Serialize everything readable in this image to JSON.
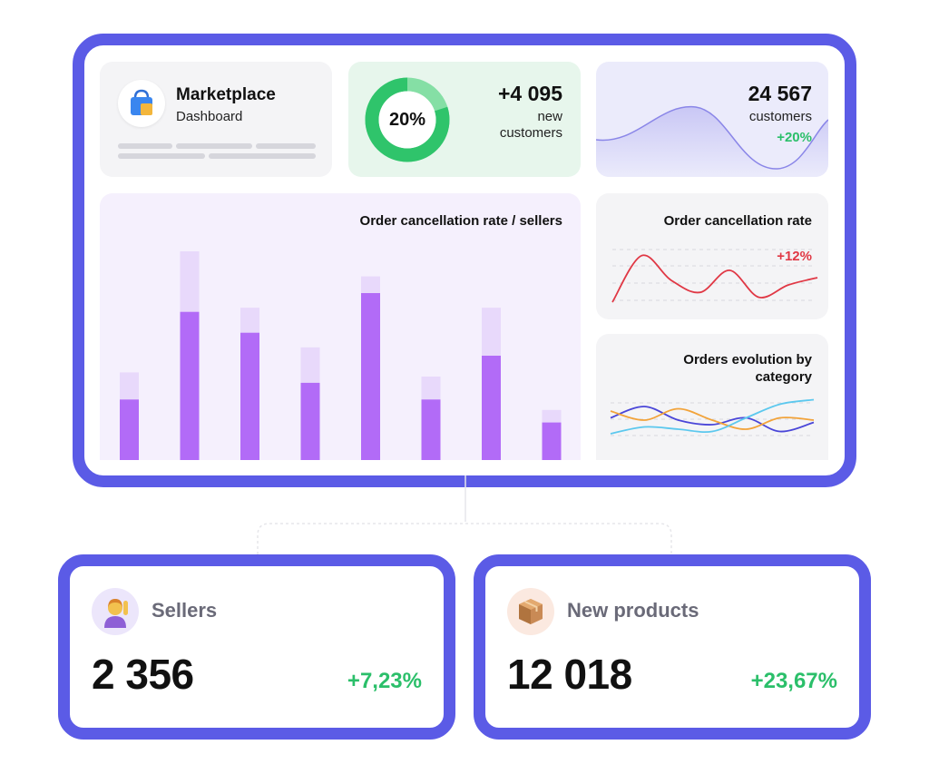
{
  "brand": {
    "title": "Marketplace",
    "subtitle": "Dashboard",
    "icon": "shopping-bag-icon"
  },
  "new_customers": {
    "percent_label": "20%",
    "percent_value": 0.2,
    "value": "+4 095",
    "label_line1": "new",
    "label_line2": "customers"
  },
  "customers": {
    "value": "24 567",
    "label": "customers",
    "delta": "+20%"
  },
  "cancellation_sellers": {
    "title": "Order cancellation rate / sellers"
  },
  "cancellation_rate": {
    "title": "Order cancellation rate",
    "delta": "+12%"
  },
  "orders_evolution": {
    "title_line1": "Orders evolution by",
    "title_line2": "category"
  },
  "sellers": {
    "label": "Sellers",
    "value": "2 356",
    "delta": "+7,23%",
    "icon": "person-raising-hand-icon"
  },
  "new_products": {
    "label": "New products",
    "value": "12 018",
    "delta": "+23,67%",
    "icon": "package-icon"
  },
  "colors": {
    "frame": "#5b5be6",
    "positive": "#2bbf6a",
    "negative": "#e03845",
    "bar_dark": "#b26bf7",
    "bar_light": "#e8d9fb",
    "donut": "#2fc46b",
    "donut_track": "#85dfa5"
  },
  "chart_data": [
    {
      "type": "bar",
      "title": "Order cancellation rate / sellers",
      "series": [
        {
          "values": [
            0.29,
            0.71,
            0.61,
            0.37,
            0.8,
            0.29,
            0.5,
            0.18
          ]
        },
        {
          "values": [
            0.42,
            1.0,
            0.73,
            0.54,
            0.88,
            0.4,
            0.73,
            0.24
          ]
        }
      ],
      "ylim": [
        0,
        1
      ],
      "grid": false
    },
    {
      "type": "line",
      "title": "Order cancellation rate",
      "annotation": "+12%",
      "series": [
        {
          "values": [
            0.0,
            0.95,
            0.45,
            0.2,
            0.65,
            0.1,
            0.35,
            0.5
          ]
        }
      ],
      "grid": true
    },
    {
      "type": "line",
      "title": "Orders evolution by category",
      "series": [
        {
          "values": [
            0.55,
            0.8,
            0.5,
            0.4,
            0.55,
            0.25,
            0.45
          ]
        },
        {
          "values": [
            0.7,
            0.5,
            0.75,
            0.5,
            0.3,
            0.55,
            0.5
          ]
        },
        {
          "values": [
            0.2,
            0.35,
            0.3,
            0.25,
            0.55,
            0.85,
            0.95
          ]
        }
      ],
      "grid": true
    }
  ]
}
